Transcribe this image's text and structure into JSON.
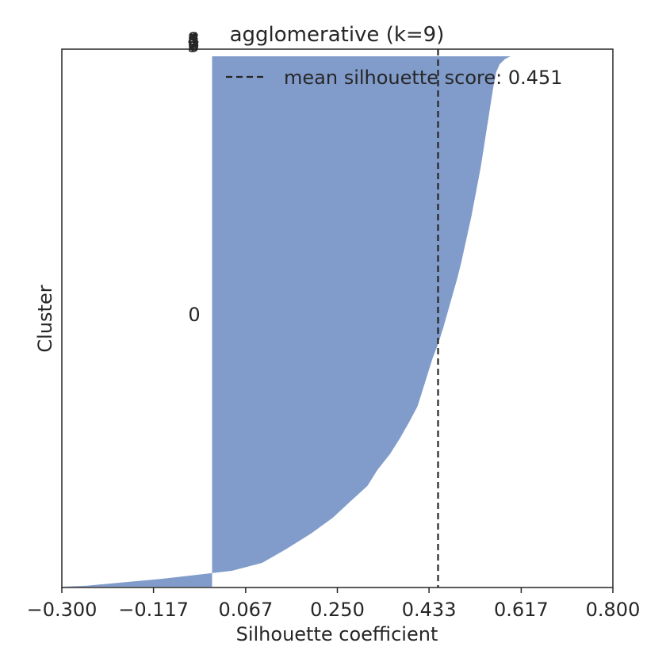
{
  "chart_data": {
    "type": "area",
    "title": "agglomerative (k=9)",
    "xlabel": "Silhouette coefficient",
    "ylabel": "Cluster",
    "xlim": [
      -0.3,
      0.8
    ],
    "xticks": [
      "−0.300",
      "−0.117",
      "0.067",
      "0.250",
      "0.433",
      "0.617",
      "0.800"
    ],
    "xtick_values": [
      -0.3,
      -0.117,
      0.067,
      0.25,
      0.433,
      0.617,
      0.8
    ],
    "grid": false,
    "legend_position": "top-right",
    "fill_color": "#819CCA",
    "mean_line_color": "#262626",
    "clusters": [
      {
        "label": "0",
        "silhouette_curve": {
          "fraction_of_samples": [
            0.0,
            0.002,
            0.015,
            0.03,
            0.045,
            0.07,
            0.1,
            0.13,
            0.16,
            0.19,
            0.22,
            0.25,
            0.28,
            0.31,
            0.34,
            0.37,
            0.4,
            0.43,
            0.46,
            0.49,
            0.52,
            0.55,
            0.58,
            0.61,
            0.64,
            0.67,
            0.7,
            0.73,
            0.76,
            0.79,
            0.82,
            0.85,
            0.88,
            0.91,
            0.94,
            0.97,
            0.985,
            0.995,
            1.0
          ],
          "values": [
            -0.3,
            -0.25,
            -0.1,
            0.04,
            0.1,
            0.146,
            0.197,
            0.241,
            0.275,
            0.31,
            0.33,
            0.355,
            0.375,
            0.393,
            0.41,
            0.42,
            0.43,
            0.44,
            0.452,
            0.462,
            0.471,
            0.48,
            0.489,
            0.497,
            0.504,
            0.511,
            0.518,
            0.524,
            0.53,
            0.536,
            0.541,
            0.546,
            0.551,
            0.556,
            0.561,
            0.567,
            0.574,
            0.585,
            0.596
          ]
        }
      },
      {
        "label": "1"
      },
      {
        "label": "2"
      },
      {
        "label": "3"
      },
      {
        "label": "4"
      },
      {
        "label": "5"
      },
      {
        "label": "6"
      },
      {
        "label": "7"
      },
      {
        "label": "8"
      }
    ],
    "series": [
      {
        "name": "mean silhouette score: 0.451",
        "type": "vline",
        "x": 0.451
      }
    ]
  }
}
